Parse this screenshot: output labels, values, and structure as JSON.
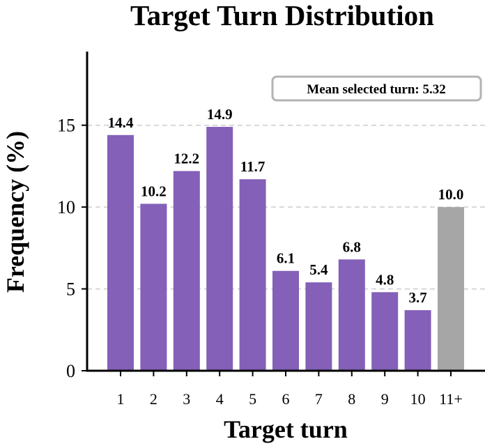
{
  "chart_data": {
    "type": "bar",
    "title": "Target Turn Distribution",
    "xlabel": "Target turn",
    "ylabel": "Frequency (%)",
    "categories": [
      "1",
      "2",
      "3",
      "4",
      "5",
      "6",
      "7",
      "8",
      "9",
      "10",
      "11+"
    ],
    "values": [
      14.4,
      10.2,
      12.2,
      14.9,
      11.7,
      6.1,
      5.4,
      6.8,
      4.8,
      3.7,
      10.0
    ],
    "value_labels": [
      "14.4",
      "10.2",
      "12.2",
      "14.9",
      "11.7",
      "6.1",
      "5.4",
      "6.8",
      "4.8",
      "3.7",
      "10.0"
    ],
    "bar_colors": [
      "#8460b8",
      "#8460b8",
      "#8460b8",
      "#8460b8",
      "#8460b8",
      "#8460b8",
      "#8460b8",
      "#8460b8",
      "#8460b8",
      "#8460b8",
      "#a6a6a6"
    ],
    "ylim": [
      0,
      19.5
    ],
    "yticks": [
      0,
      5,
      10,
      15
    ],
    "ytick_labels": [
      "0",
      "5",
      "10",
      "15"
    ],
    "grid": "horizontal dashed",
    "annotation": {
      "text": "Mean selected turn: 5.32",
      "placement": "top-right"
    }
  }
}
